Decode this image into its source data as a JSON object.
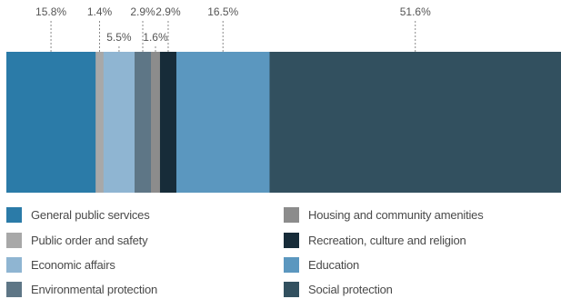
{
  "chart_data": {
    "type": "bar",
    "orientation": "stacked-horizontal-100",
    "title": "",
    "xlabel": "",
    "ylabel": "",
    "legend_position": "bottom",
    "grid": false,
    "series": [
      {
        "name": "General public services",
        "value": 15.8,
        "label": "15.8%",
        "color": "#2b7ba8"
      },
      {
        "name": "Public order and safety",
        "value": 1.4,
        "label": "1.4%",
        "color": "#a8a8a8"
      },
      {
        "name": "Economic affairs",
        "value": 5.5,
        "label": "5.5%",
        "color": "#8fb5d2"
      },
      {
        "name": "Environmental protection",
        "value": 2.9,
        "label": "2.9%",
        "color": "#5e7686"
      },
      {
        "name": "Housing and community amenities",
        "value": 1.6,
        "label": "1.6%",
        "color": "#8c8c8c"
      },
      {
        "name": "Recreation, culture and religion",
        "value": 2.9,
        "label": "2.9%",
        "color": "#172c39"
      },
      {
        "name": "Education",
        "value": 16.5,
        "label": "16.5%",
        "color": "#5b97bf"
      },
      {
        "name": "Social protection",
        "value": 51.6,
        "label": "51.6%",
        "color": "#32505f"
      }
    ]
  }
}
